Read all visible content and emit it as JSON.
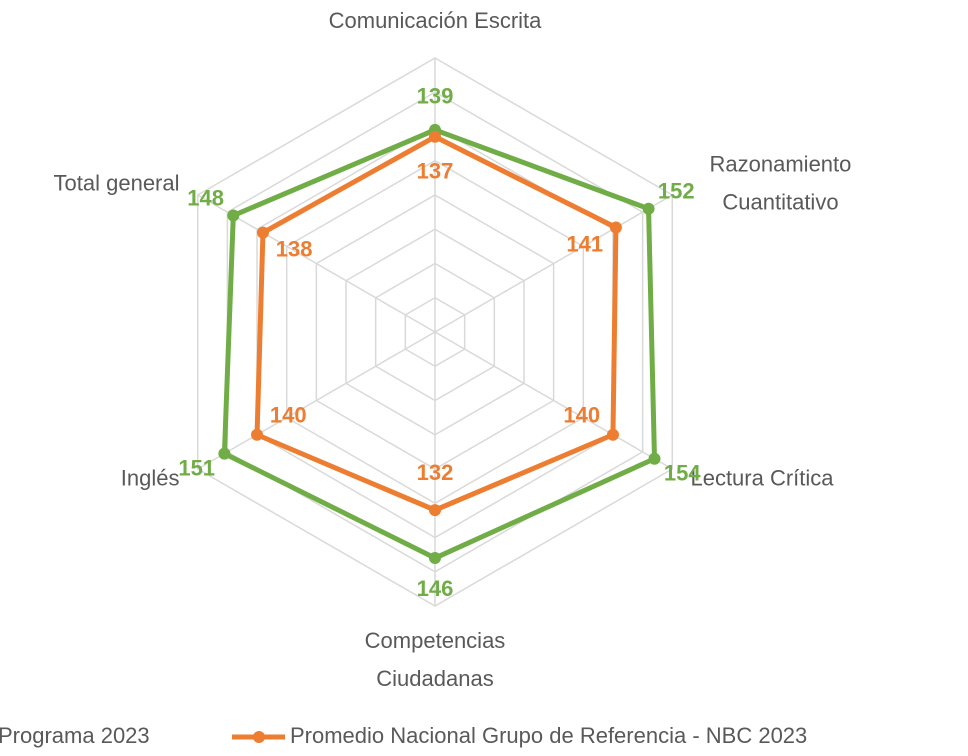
{
  "chart_data": {
    "type": "radar",
    "categories": [
      "Comunicación Escrita",
      "Razonamiento Cuantitativo",
      "Lectura Crítica",
      "Competencias Ciudadanas",
      "Inglés",
      "Total general"
    ],
    "series": [
      {
        "name": "Programa 2023",
        "color": "#70ad47",
        "values": [
          139,
          152,
          154,
          146,
          151,
          148
        ]
      },
      {
        "name": "Promedio Nacional Grupo de Referencia - NBC 2023",
        "color": "#ed7d31",
        "values": [
          137,
          141,
          140,
          132,
          140,
          138
        ]
      }
    ],
    "ylim": [
      80,
      160
    ],
    "yticks": [
      80,
      90,
      100,
      110,
      120,
      130,
      140,
      150,
      160
    ],
    "grid": true,
    "legend": "bottom"
  }
}
